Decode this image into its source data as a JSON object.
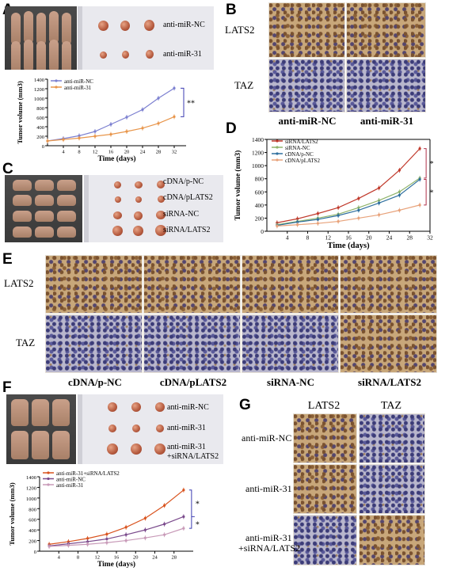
{
  "panels": {
    "A": {
      "letter": "A",
      "tumor_labels": [
        "anti-miR-NC",
        "anti-miR-31"
      ]
    },
    "B": {
      "letter": "B",
      "row_labels": [
        "LATS2",
        "TAZ"
      ],
      "col_labels": [
        "anti-miR-NC",
        "anti-miR-31"
      ]
    },
    "C": {
      "letter": "C",
      "tumor_labels": [
        "cDNA/p-NC",
        "cDNA/pLATS2",
        "siRNA-NC",
        "siRNA/LATS2"
      ]
    },
    "D": {
      "letter": "D"
    },
    "E": {
      "letter": "E",
      "row_labels": [
        "LATS2",
        "TAZ"
      ],
      "col_labels": [
        "cDNA/p-NC",
        "cDNA/pLATS2",
        "siRNA-NC",
        "siRNA/LATS2"
      ]
    },
    "F": {
      "letter": "F",
      "tumor_labels": [
        "anti-miR-NC",
        "anti-miR-31",
        "anti-miR-31",
        "+siRNA/LATS2"
      ]
    },
    "G": {
      "letter": "G",
      "col_labels": [
        "LATS2",
        "TAZ"
      ],
      "row_labels": [
        "anti-miR-NC",
        "anti-miR-31",
        "anti-miR-31",
        "+siRNA/LATS2"
      ]
    }
  },
  "chart_data": [
    {
      "panel": "A",
      "type": "line",
      "xlabel": "Time (days)",
      "ylabel": "Tumor volume (mm3)",
      "x": [
        0,
        4,
        8,
        12,
        16,
        20,
        24,
        28,
        32
      ],
      "xticks": [
        "4",
        "8",
        "12",
        "16",
        "20",
        "24",
        "28",
        "32"
      ],
      "yticks": [
        "0",
        "200",
        "400",
        "600",
        "800",
        "1000",
        "1200",
        "1400"
      ],
      "xlim": [
        0,
        35
      ],
      "ylim": [
        0,
        1400
      ],
      "significance": "**",
      "colors": [
        "#7b7fd0",
        "#e8954a"
      ],
      "series": [
        {
          "name": "anti-miR-NC",
          "x": [
            0,
            4,
            8,
            12,
            16,
            20,
            24,
            28,
            32
          ],
          "values": [
            100,
            150,
            210,
            300,
            450,
            600,
            760,
            1000,
            1210
          ]
        },
        {
          "name": "anti-miR-31",
          "x": [
            0,
            4,
            8,
            12,
            16,
            20,
            24,
            28,
            32
          ],
          "values": [
            100,
            130,
            160,
            200,
            240,
            300,
            370,
            470,
            610
          ]
        }
      ]
    },
    {
      "panel": "D",
      "type": "line",
      "xlabel": "Time (days)",
      "ylabel": "Tumor volume (mm3)",
      "xticks": [
        "4",
        "8",
        "12",
        "16",
        "20",
        "24",
        "28",
        "32"
      ],
      "yticks": [
        "0",
        "200",
        "400",
        "600",
        "800",
        "1000",
        "1200",
        "1400"
      ],
      "xlim": [
        0,
        32
      ],
      "ylim": [
        0,
        1400
      ],
      "significance": [
        "*",
        "*"
      ],
      "colors": [
        "#c0392b",
        "#8fb36a",
        "#2e6f9e",
        "#e8a27a"
      ],
      "series": [
        {
          "name": "siRNA/LATS2",
          "x": [
            2,
            6,
            10,
            14,
            18,
            22,
            26,
            30
          ],
          "values": [
            130,
            190,
            270,
            360,
            500,
            660,
            930,
            1260
          ]
        },
        {
          "name": "siRNA-NC",
          "x": [
            2,
            6,
            10,
            14,
            18,
            22,
            26,
            30
          ],
          "values": [
            100,
            150,
            200,
            260,
            360,
            470,
            600,
            810
          ]
        },
        {
          "name": "cDNA/p-NC",
          "x": [
            2,
            6,
            10,
            14,
            18,
            22,
            26,
            30
          ],
          "values": [
            90,
            140,
            180,
            240,
            320,
            430,
            550,
            790
          ]
        },
        {
          "name": "cDNA/pLATS2",
          "x": [
            2,
            6,
            10,
            14,
            18,
            22,
            26,
            30
          ],
          "values": [
            80,
            100,
            120,
            150,
            200,
            250,
            320,
            400
          ]
        }
      ]
    },
    {
      "panel": "F",
      "type": "line",
      "xlabel": "Time (days)",
      "ylabel": "Tumor volume (mm3)",
      "xticks": [
        "4",
        "8",
        "12",
        "16",
        "20",
        "24",
        "28"
      ],
      "yticks": [
        "0",
        "200",
        "400",
        "600",
        "800",
        "1000",
        "1200",
        "1400"
      ],
      "xlim": [
        0,
        32
      ],
      "ylim": [
        0,
        1400
      ],
      "significance": [
        "*",
        "*"
      ],
      "colors": [
        "#d9531e",
        "#7a4a8c",
        "#c89ab8"
      ],
      "series": [
        {
          "name": "anti-miR-31+siRNA/LATS2",
          "x": [
            2,
            6,
            10,
            14,
            18,
            22,
            26,
            30
          ],
          "values": [
            130,
            180,
            240,
            320,
            450,
            620,
            860,
            1150
          ]
        },
        {
          "name": "anti-miR-NC",
          "x": [
            2,
            6,
            10,
            14,
            18,
            22,
            26,
            30
          ],
          "values": [
            100,
            140,
            180,
            230,
            310,
            400,
            510,
            650
          ]
        },
        {
          "name": "anti-miR-31",
          "x": [
            2,
            6,
            10,
            14,
            18,
            22,
            26,
            30
          ],
          "values": [
            90,
            110,
            130,
            160,
            200,
            250,
            310,
            430
          ]
        }
      ]
    }
  ]
}
